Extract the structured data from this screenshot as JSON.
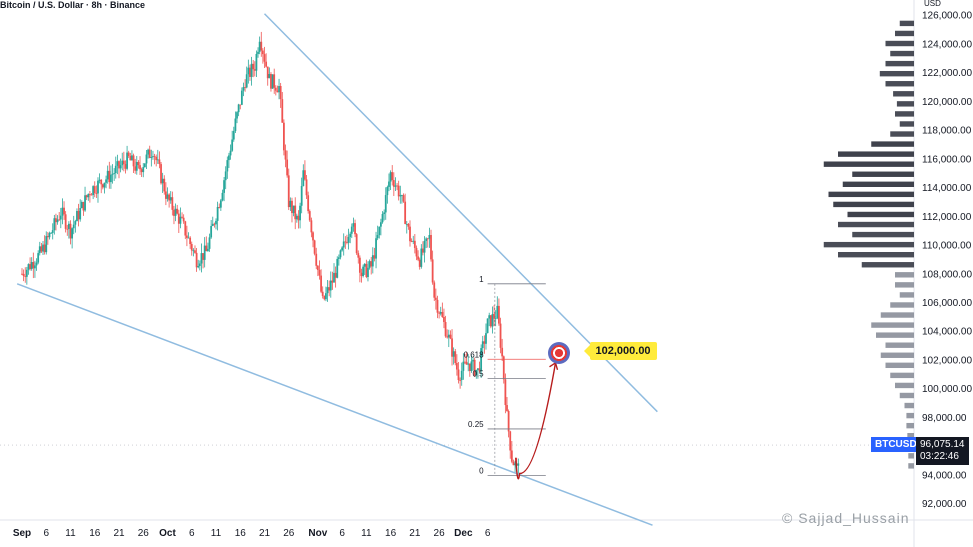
{
  "header": {
    "title": "Bitcoin / U.S. Dollar · 8h · Binance"
  },
  "axis": {
    "currency": "USD"
  },
  "ticker": "BTCUSD",
  "current_price": {
    "value": "96,075.14",
    "countdown": "03:22:46"
  },
  "target": {
    "label": "102,000.00",
    "value": 102000
  },
  "fib": {
    "levels": [
      {
        "label": "1",
        "value": 107300
      },
      {
        "label": "0.618",
        "value": 102050
      },
      {
        "label": "0.5",
        "value": 100700
      },
      {
        "label": "0.25",
        "value": 97200
      },
      {
        "label": "0",
        "value": 93950
      }
    ]
  },
  "watermark": "© Sajjad_Hussain",
  "colors": {
    "up": "#26a69a",
    "down": "#ef5350",
    "trendline": "#90bce0",
    "target_arrow": "#b71c1c",
    "volume_profile": "#2a2e39"
  },
  "chart_data": {
    "type": "candlestick",
    "title": "Bitcoin / U.S. Dollar · 8h · Binance",
    "ylabel": "USD",
    "ylim": [
      91000,
      126500
    ],
    "y_ticks": [
      92000,
      94000,
      96000,
      98000,
      100000,
      102000,
      104000,
      106000,
      108000,
      110000,
      112000,
      114000,
      116000,
      118000,
      120000,
      122000,
      124000,
      126000
    ],
    "y_tick_labels": [
      "92,000.00",
      "94,000.00",
      "96,000.00",
      "98,000.00",
      "100,000.00",
      "102,000.00",
      "104,000.00",
      "106,000.00",
      "108,000.00",
      "110,000.00",
      "112,000.00",
      "114,000.00",
      "116,000.00",
      "118,000.00",
      "120,000.00",
      "122,000.00",
      "124,000.00",
      "126,000.00"
    ],
    "x_tick_labels": [
      "Sep",
      "6",
      "11",
      "16",
      "21",
      "26",
      "Oct",
      "6",
      "11",
      "16",
      "21",
      "26",
      "Nov",
      "6",
      "11",
      "16",
      "21",
      "26",
      "Dec",
      "6"
    ],
    "path_points": [
      [
        0,
        108000
      ],
      [
        4,
        109500
      ],
      [
        8,
        112300
      ],
      [
        10,
        111000
      ],
      [
        14,
        113800
      ],
      [
        18,
        114800
      ],
      [
        22,
        116000
      ],
      [
        24,
        115200
      ],
      [
        27,
        116700
      ],
      [
        30,
        113200
      ],
      [
        33,
        111500
      ],
      [
        36,
        109000
      ],
      [
        38,
        109500
      ],
      [
        41,
        113500
      ],
      [
        44,
        118500
      ],
      [
        46,
        121500
      ],
      [
        48,
        122500
      ],
      [
        49,
        124600
      ],
      [
        51,
        121500
      ],
      [
        53,
        121000
      ],
      [
        55,
        113000
      ],
      [
        57,
        111500
      ],
      [
        58,
        115000
      ],
      [
        60,
        110500
      ],
      [
        62,
        106000
      ],
      [
        64,
        107500
      ],
      [
        66,
        109500
      ],
      [
        68,
        111700
      ],
      [
        70,
        108000
      ],
      [
        72,
        108500
      ],
      [
        74,
        111500
      ],
      [
        76,
        115000
      ],
      [
        78,
        113500
      ],
      [
        80,
        110500
      ],
      [
        82,
        109000
      ],
      [
        84,
        110500
      ],
      [
        85,
        106500
      ],
      [
        88,
        103500
      ],
      [
        90,
        101000
      ],
      [
        92,
        101800
      ],
      [
        94,
        101200
      ],
      [
        96,
        104500
      ],
      [
        98,
        105300
      ],
      [
        99,
        102200
      ],
      [
        100,
        98000
      ],
      [
        101,
        95200
      ],
      [
        102,
        94300
      ],
      [
        102.5,
        95700
      ]
    ],
    "trendlines": [
      {
        "from": [
          50,
          126100
        ],
        "to": [
          131,
          98400
        ]
      },
      {
        "from": [
          -1,
          107300
        ],
        "to": [
          130,
          90500
        ]
      }
    ],
    "projection": {
      "from": [
        102.6,
        94100
      ],
      "to": [
        110,
        101800
      ]
    },
    "volume_profile": [
      {
        "price": 125400,
        "v": 0.15
      },
      {
        "price": 124700,
        "v": 0.2
      },
      {
        "price": 124000,
        "v": 0.3
      },
      {
        "price": 123300,
        "v": 0.25
      },
      {
        "price": 122600,
        "v": 0.3
      },
      {
        "price": 121900,
        "v": 0.36
      },
      {
        "price": 121200,
        "v": 0.3
      },
      {
        "price": 120500,
        "v": 0.22
      },
      {
        "price": 119800,
        "v": 0.18
      },
      {
        "price": 119100,
        "v": 0.2
      },
      {
        "price": 118400,
        "v": 0.15
      },
      {
        "price": 117700,
        "v": 0.25
      },
      {
        "price": 117000,
        "v": 0.45
      },
      {
        "price": 116300,
        "v": 0.8
      },
      {
        "price": 115600,
        "v": 0.95
      },
      {
        "price": 114900,
        "v": 0.65
      },
      {
        "price": 114200,
        "v": 0.75
      },
      {
        "price": 113500,
        "v": 0.9
      },
      {
        "price": 112800,
        "v": 0.85
      },
      {
        "price": 112100,
        "v": 0.7
      },
      {
        "price": 111400,
        "v": 0.8
      },
      {
        "price": 110700,
        "v": 0.65
      },
      {
        "price": 110000,
        "v": 0.95
      },
      {
        "price": 109300,
        "v": 0.8
      },
      {
        "price": 108600,
        "v": 0.55
      },
      {
        "price": 107900,
        "v": 0.2
      },
      {
        "price": 107200,
        "v": 0.2
      },
      {
        "price": 106500,
        "v": 0.15
      },
      {
        "price": 105800,
        "v": 0.25
      },
      {
        "price": 105100,
        "v": 0.35
      },
      {
        "price": 104400,
        "v": 0.45
      },
      {
        "price": 103700,
        "v": 0.4
      },
      {
        "price": 103000,
        "v": 0.3
      },
      {
        "price": 102300,
        "v": 0.35
      },
      {
        "price": 101600,
        "v": 0.3
      },
      {
        "price": 100900,
        "v": 0.25
      },
      {
        "price": 100200,
        "v": 0.2
      },
      {
        "price": 99500,
        "v": 0.15
      },
      {
        "price": 98800,
        "v": 0.1
      },
      {
        "price": 98100,
        "v": 0.08
      },
      {
        "price": 97400,
        "v": 0.08
      },
      {
        "price": 96700,
        "v": 0.07
      },
      {
        "price": 96000,
        "v": 0.07
      },
      {
        "price": 95300,
        "v": 0.06
      },
      {
        "price": 94600,
        "v": 0.06
      }
    ]
  }
}
